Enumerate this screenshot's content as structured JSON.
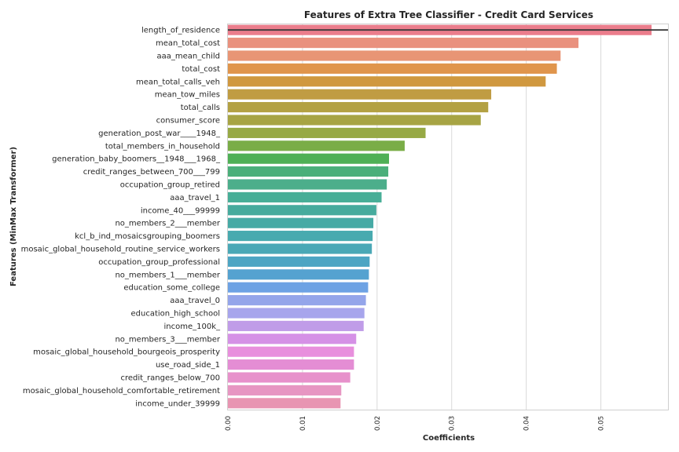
{
  "chart_data": {
    "type": "bar",
    "orientation": "horizontal",
    "title": "Features of Extra Tree Classifier - Credit Card Services",
    "xlabel": "Coefficients",
    "ylabel": "Features (MinMax Transformer)",
    "xlim": [
      0,
      0.059
    ],
    "xticks": [
      "0.00",
      "0.01",
      "0.02",
      "0.03",
      "0.04",
      "0.05"
    ],
    "xtick_values": [
      0,
      0.01,
      0.02,
      0.03,
      0.04,
      0.05
    ],
    "grid": "vertical",
    "categories": [
      "length_of_residence",
      "mean_total_cost",
      "aaa_mean_child",
      "total_cost",
      "mean_total_calls_veh",
      "mean_tow_miles",
      "total_calls",
      "consumer_score",
      "generation_post_war____1948_",
      "total_members_in_household",
      "generation_baby_boomers__1948___1968_",
      "credit_ranges_between_700___799",
      "occupation_group_retired",
      "aaa_travel_1",
      "income_40___99999",
      "no_members_2___member",
      "kcl_b_ind_mosaicsgrouping_boomers",
      "mosaic_global_household_routine_service_workers",
      "occupation_group_professional",
      "no_members_1___member",
      "education_some_college",
      "aaa_travel_0",
      "education_high_school",
      "income_100k_",
      "no_members_3___member",
      "mosaic_global_household_bourgeois_prosperity",
      "use_road_side_1",
      "credit_ranges_below_700",
      "mosaic_global_household_comfortable_retirement",
      "income_under_39999"
    ],
    "values": [
      0.0568,
      0.047,
      0.0446,
      0.0441,
      0.0426,
      0.0353,
      0.0349,
      0.0339,
      0.0265,
      0.0237,
      0.0216,
      0.0215,
      0.0213,
      0.0206,
      0.0199,
      0.0195,
      0.0194,
      0.0193,
      0.019,
      0.0189,
      0.0188,
      0.0185,
      0.0183,
      0.0182,
      0.0172,
      0.0169,
      0.0169,
      0.0164,
      0.0152,
      0.0151
    ],
    "colors": [
      "#eb7d8c",
      "#e9917e",
      "#e89575",
      "#e0954c",
      "#d0983f",
      "#c09c43",
      "#b3a143",
      "#a7a444",
      "#97a945",
      "#7aad47",
      "#4fb056",
      "#4baf7a",
      "#4cae8b",
      "#47ae97",
      "#46ab9d",
      "#46aaa5",
      "#48aaaf",
      "#4aa8b6",
      "#4da5c3",
      "#55a2d0",
      "#6da2e4",
      "#94a5ea",
      "#a7a5ec",
      "#c09ce8",
      "#d591e6",
      "#e88fdd",
      "#e48dd4",
      "#e791cb",
      "#e796c2",
      "#e895b2"
    ],
    "error_bar": {
      "category": "length_of_residence",
      "low": 0,
      "high": 0.059
    }
  }
}
